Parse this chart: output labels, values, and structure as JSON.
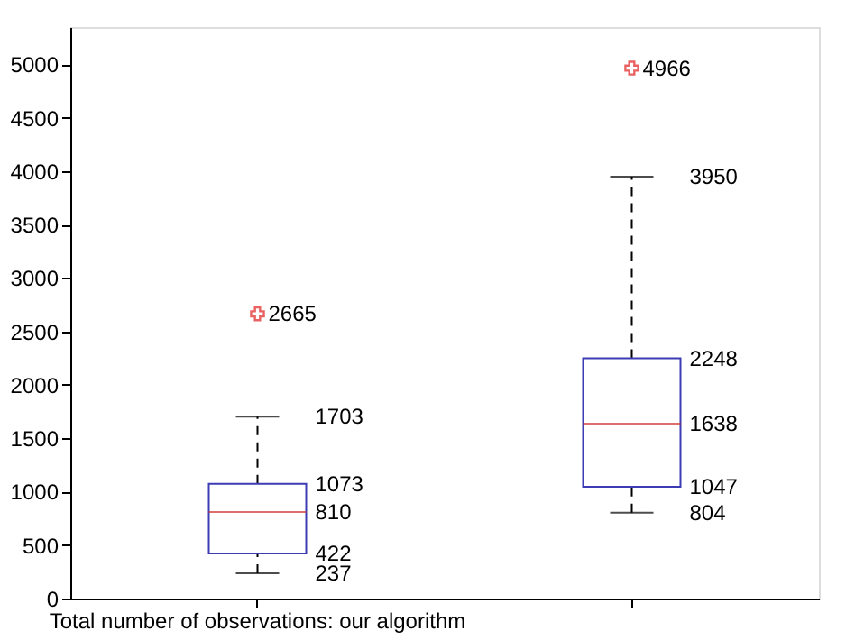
{
  "chart_data": {
    "type": "box",
    "categories": [
      "Total number of observations: our algorithm",
      null
    ],
    "series": [
      {
        "color": "#3c3cb4",
        "boxes": [
          {
            "low": 237,
            "q1": 422,
            "median": 810,
            "q3": 1073,
            "high": 1703,
            "outliers": [
              2665
            ]
          },
          {
            "low": 804,
            "q1": 1047,
            "median": 1638,
            "q3": 2248,
            "high": 3950,
            "outliers": [
              4966
            ]
          }
        ]
      }
    ],
    "ylim": [
      0,
      5350
    ],
    "yticks": [
      0,
      500,
      1000,
      1500,
      2000,
      2500,
      3000,
      3500,
      4000,
      4500,
      5000
    ],
    "annotations": [
      "237",
      "422",
      "810",
      "1073",
      "1703",
      "2665",
      "804",
      "1047",
      "1638",
      "2248",
      "3950",
      "4966"
    ],
    "marker": "cross",
    "line_style": "dashed",
    "grid": false
  }
}
